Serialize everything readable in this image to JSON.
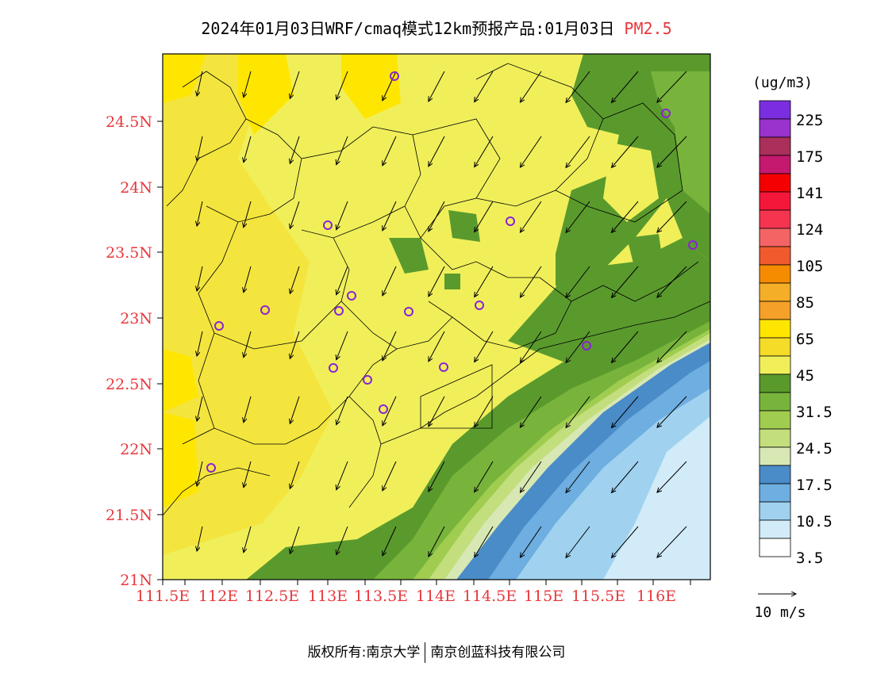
{
  "header": {
    "title": "2024年01月03日WRF/cmaq模式12km预报产品:01月03日",
    "pollutant": "PM2.5"
  },
  "map": {
    "lon_labels": [
      "111.5E",
      "112E",
      "112.5E",
      "113E",
      "113.5E",
      "114E",
      "114.5E",
      "115E",
      "115.5E",
      "116E"
    ],
    "lat_labels": [
      "24.5N",
      "24N",
      "23.5N",
      "23N",
      "22.5N",
      "22N",
      "21.5N",
      "21N"
    ],
    "label_color": "#e8383d",
    "stations_color": "#8b22d6",
    "wind_direction": "from north-east (arrows point south-west)"
  },
  "legend": {
    "unit": "(ug/m3)",
    "labels": [
      "225",
      "175",
      "141",
      "124",
      "105",
      "85",
      "65",
      "45",
      "31.5",
      "24.5",
      "17.5",
      "10.5",
      "3.5"
    ],
    "colors_top_to_bottom": [
      "#7b2ee0",
      "#9933cc",
      "#aa2f5a",
      "#c4196f",
      "#f50000",
      "#f5173a",
      "#f53550",
      "#f56464",
      "#f05a2d",
      "#f58c00",
      "#f5ae28",
      "#f5a028",
      "#ffe600",
      "#f5dc28",
      "#f0ef5a",
      "#5a9a2d",
      "#78b43c",
      "#a0cd50",
      "#c3de7d",
      "#d8e8b4",
      "#4a8cc8",
      "#6eaee0",
      "#a0d2f0",
      "#d2ebf8",
      "#ffffff"
    ],
    "wind_ref_label": "10 m/s"
  },
  "footer": {
    "copyright": "版权所有:南京大学",
    "company": "南京创蓝科技有限公司"
  }
}
